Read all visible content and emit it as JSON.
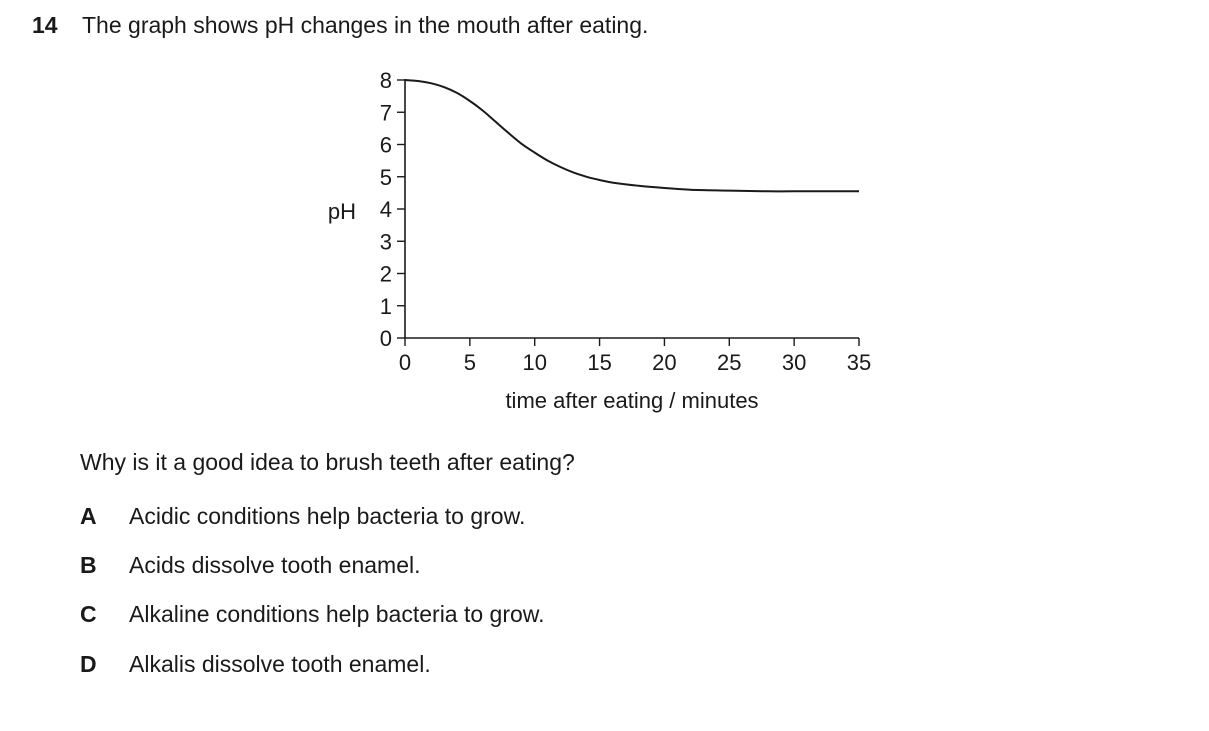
{
  "question": {
    "number": "14",
    "stem": "The graph shows pH changes in the mouth after eating.",
    "prompt": "Why is it a good idea to brush teeth after eating?",
    "options": [
      {
        "letter": "A",
        "text": "Acidic conditions help bacteria to grow."
      },
      {
        "letter": "B",
        "text": "Acids dissolve tooth enamel."
      },
      {
        "letter": "C",
        "text": "Alkaline conditions help bacteria to grow."
      },
      {
        "letter": "D",
        "text": "Alkalis dissolve tooth enamel."
      }
    ]
  },
  "chart_data": {
    "type": "line",
    "title": "",
    "xlabel": "time after eating / minutes",
    "ylabel": "pH",
    "xlim": [
      0,
      35
    ],
    "ylim": [
      0,
      8
    ],
    "xticks": [
      0,
      5,
      10,
      15,
      20,
      25,
      30,
      35
    ],
    "yticks": [
      0,
      1,
      2,
      3,
      4,
      5,
      6,
      7,
      8
    ],
    "grid": false,
    "series": [
      {
        "x": [
          0,
          1,
          2,
          3,
          4,
          5,
          6,
          7,
          8,
          9,
          10,
          11,
          12,
          13,
          14,
          15,
          16,
          18,
          20,
          22,
          25,
          28,
          30,
          35
        ],
        "y": [
          8.0,
          7.97,
          7.9,
          7.78,
          7.6,
          7.35,
          7.05,
          6.7,
          6.35,
          6.02,
          5.75,
          5.5,
          5.3,
          5.13,
          5.0,
          4.9,
          4.82,
          4.72,
          4.65,
          4.6,
          4.57,
          4.55,
          4.55,
          4.55
        ]
      }
    ]
  }
}
